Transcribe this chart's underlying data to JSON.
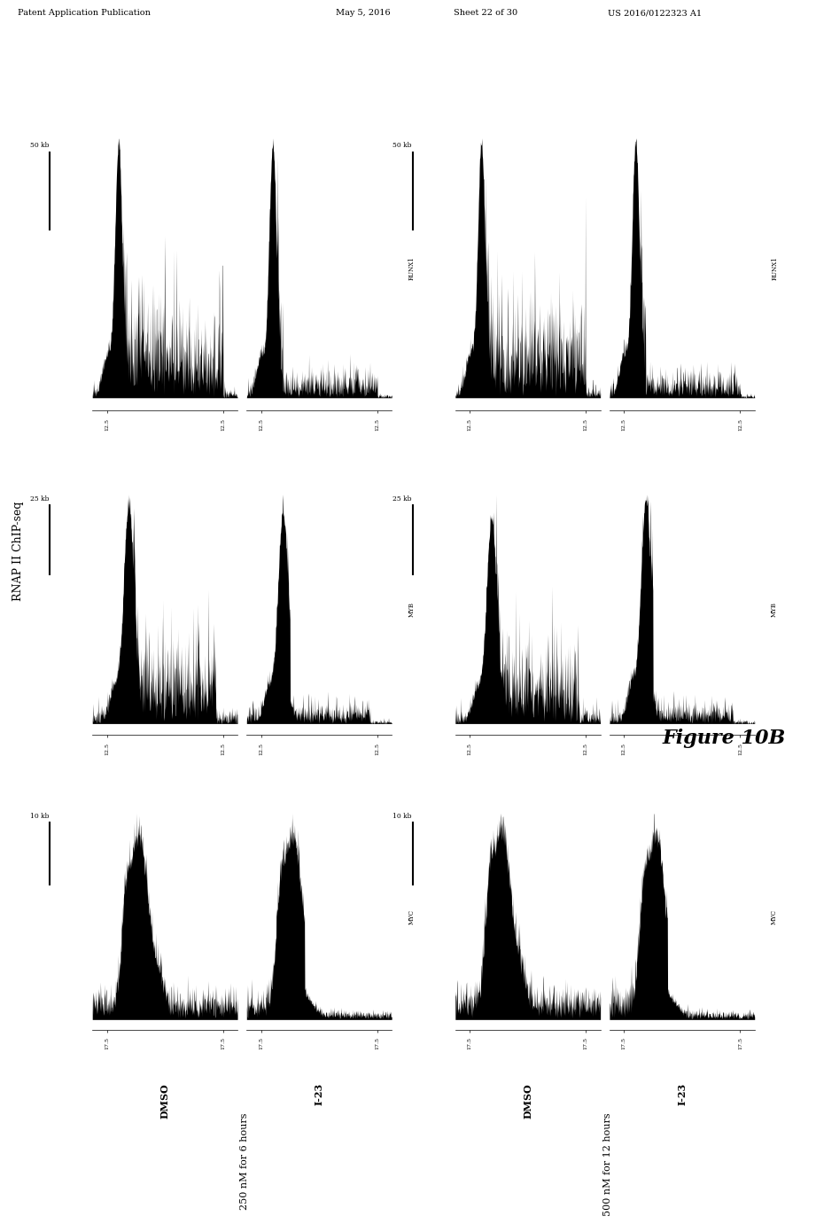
{
  "background_color": "#ffffff",
  "header_text": "Patent Application Publication",
  "header_date": "May 5, 2016",
  "header_sheet": "Sheet 22 of 30",
  "header_patent": "US 2016/0122323 A1",
  "figure_label": "Figure 10B",
  "y_axis_label": "RNAP II ChIP-seq",
  "left_group_label": "250 nM for 6 hours",
  "right_group_label": "500 nM for 12 hours",
  "conditions": [
    "DMSO",
    "I-23"
  ],
  "genes": [
    "MYC",
    "MYB",
    "RUNX1"
  ],
  "scale_bars": [
    "10 kb",
    "25 kb",
    "50 kb"
  ],
  "tick_values_myc": [
    17.5,
    17.5
  ],
  "tick_values_myb": [
    12.5,
    12.5
  ],
  "tick_values_runx1": [
    12.5,
    12.5
  ]
}
